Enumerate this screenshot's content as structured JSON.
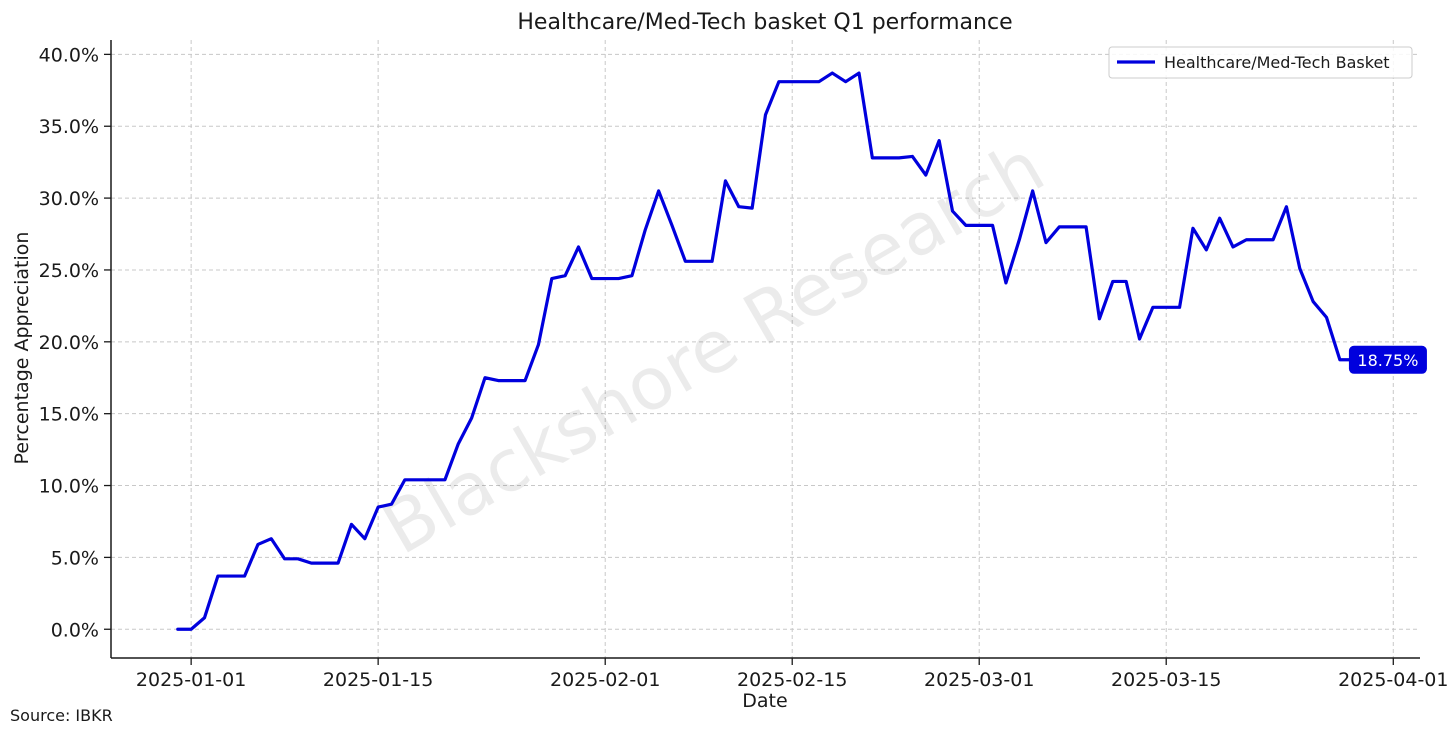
{
  "chart_data": {
    "type": "line",
    "title": "Healthcare/Med-Tech basket Q1 performance",
    "xlabel": "Date",
    "ylabel": "Percentage Appreciation",
    "source": "Source: IBKR",
    "watermark": "Blackshore Research",
    "xlim": [
      "2024-12-26",
      "2025-04-03"
    ],
    "ylim": [
      -2.0,
      41.0
    ],
    "x_ticks": [
      "2025-01-01",
      "2025-01-15",
      "2025-02-01",
      "2025-02-15",
      "2025-03-01",
      "2025-03-15",
      "2025-04-01"
    ],
    "y_ticks": [
      0,
      5,
      10,
      15,
      20,
      25,
      30,
      35,
      40
    ],
    "y_tick_labels": [
      "0.0%",
      "5.0%",
      "10.0%",
      "15.0%",
      "20.0%",
      "25.0%",
      "30.0%",
      "35.0%",
      "40.0%"
    ],
    "grid": true,
    "legend_position": "top-right",
    "line_color": "#0000dd",
    "end_label": "18.75%",
    "series": [
      {
        "name": "Healthcare/Med-Tech Basket",
        "x": [
          "2024-12-31",
          "2025-01-01",
          "2025-01-02",
          "2025-01-03",
          "2025-01-04",
          "2025-01-05",
          "2025-01-06",
          "2025-01-07",
          "2025-01-08",
          "2025-01-09",
          "2025-01-10",
          "2025-01-11",
          "2025-01-12",
          "2025-01-13",
          "2025-01-14",
          "2025-01-15",
          "2025-01-16",
          "2025-01-17",
          "2025-01-18",
          "2025-01-19",
          "2025-01-20",
          "2025-01-21",
          "2025-01-22",
          "2025-01-23",
          "2025-01-24",
          "2025-01-25",
          "2025-01-26",
          "2025-01-27",
          "2025-01-28",
          "2025-01-29",
          "2025-01-30",
          "2025-01-31",
          "2025-02-01",
          "2025-02-02",
          "2025-02-03",
          "2025-02-04",
          "2025-02-05",
          "2025-02-06",
          "2025-02-07",
          "2025-02-08",
          "2025-02-09",
          "2025-02-10",
          "2025-02-11",
          "2025-02-12",
          "2025-02-13",
          "2025-02-14",
          "2025-02-15",
          "2025-02-16",
          "2025-02-17",
          "2025-02-18",
          "2025-02-19",
          "2025-02-20",
          "2025-02-21",
          "2025-02-22",
          "2025-02-23",
          "2025-02-24",
          "2025-02-25",
          "2025-02-26",
          "2025-02-27",
          "2025-02-28",
          "2025-03-01",
          "2025-03-02",
          "2025-03-03",
          "2025-03-04",
          "2025-03-05",
          "2025-03-06",
          "2025-03-07",
          "2025-03-08",
          "2025-03-09",
          "2025-03-10",
          "2025-03-11",
          "2025-03-12",
          "2025-03-13",
          "2025-03-14",
          "2025-03-15",
          "2025-03-16",
          "2025-03-17",
          "2025-03-18",
          "2025-03-19",
          "2025-03-20",
          "2025-03-21",
          "2025-03-22",
          "2025-03-23",
          "2025-03-24",
          "2025-03-25",
          "2025-03-26",
          "2025-03-27",
          "2025-03-28",
          "2025-03-29",
          "2025-03-30",
          "2025-03-31"
        ],
        "y": [
          0.0,
          0.0,
          0.8,
          3.7,
          3.7,
          3.7,
          5.9,
          6.3,
          4.9,
          4.9,
          4.6,
          4.6,
          4.6,
          7.3,
          6.3,
          8.5,
          8.7,
          10.4,
          10.4,
          10.4,
          10.4,
          12.9,
          14.7,
          17.5,
          17.3,
          17.3,
          17.3,
          19.8,
          24.4,
          24.6,
          26.6,
          24.4,
          24.4,
          24.4,
          24.6,
          27.8,
          30.5,
          28.1,
          25.6,
          25.6,
          25.6,
          31.2,
          29.4,
          29.3,
          35.8,
          38.1,
          38.1,
          38.1,
          38.1,
          38.7,
          38.1,
          38.7,
          32.8,
          32.8,
          32.8,
          32.9,
          31.6,
          34.0,
          29.1,
          28.1,
          28.1,
          28.1,
          24.1,
          27.1,
          30.5,
          26.9,
          28.0,
          28.0,
          28.0,
          21.6,
          24.2,
          24.2,
          20.2,
          22.4,
          22.4,
          22.4,
          27.9,
          26.4,
          28.6,
          26.6,
          27.1,
          27.1,
          27.1,
          29.4,
          25.1,
          22.8,
          21.7,
          18.75,
          18.75,
          18.75,
          18.75
        ]
      }
    ]
  }
}
